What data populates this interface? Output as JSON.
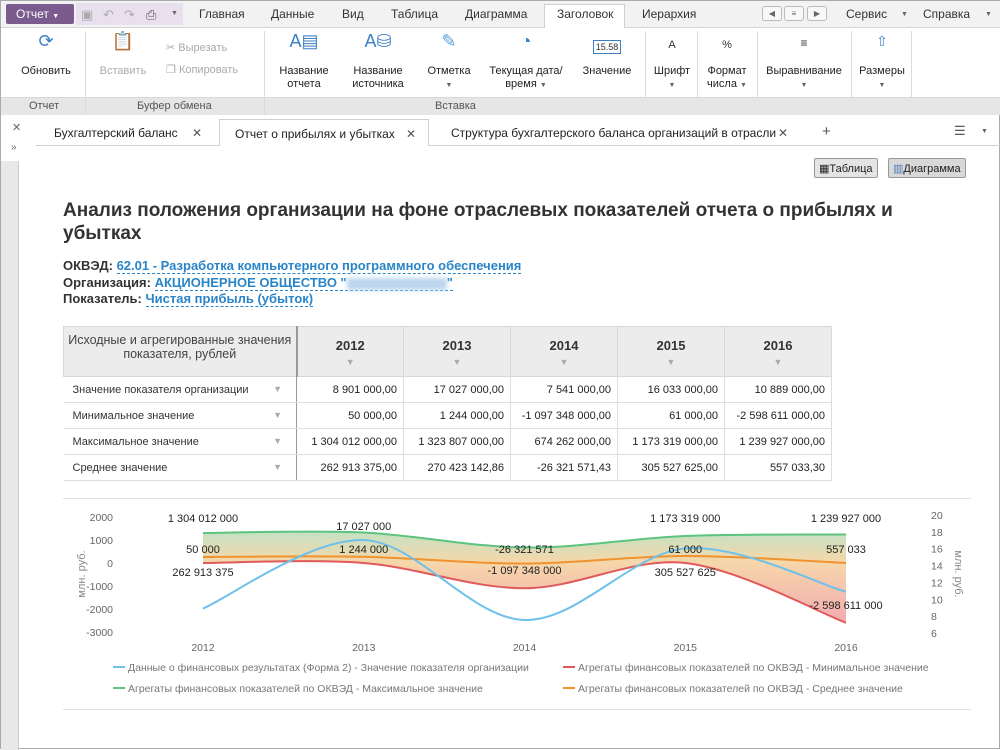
{
  "app": {
    "menu_label": "Отчет"
  },
  "menu_tabs": [
    "Главная",
    "Данные",
    "Вид",
    "Таблица",
    "Диаграмма",
    "Заголовок",
    "Иерархия"
  ],
  "active_menu_tab": "Заголовок",
  "right_menus": [
    "Сервис",
    "Справка"
  ],
  "ribbon": {
    "refresh": "Обновить",
    "paste": "Вставить",
    "cut": "Вырезать",
    "copy": "Копировать",
    "report_name": "Название отчета",
    "source_name": "Название источника",
    "mark": "Отметка",
    "datetime": "Текущая дата/время",
    "value": "Значение",
    "value_icon": "15.58",
    "font": "Шрифт",
    "number_format": "Формат числа",
    "align": "Выравнивание",
    "sizes": "Размеры",
    "groups": [
      "Отчет",
      "Буфер обмена",
      "Вставка"
    ]
  },
  "doc_tabs": [
    "Бухгалтерский баланс",
    "Отчет о прибылях и убытках",
    "Структура бухгалтерского баланса организаций в отрасли"
  ],
  "view_buttons": {
    "table": "Таблица",
    "chart": "Диаграмма"
  },
  "report": {
    "title": "Анализ положения организации на фоне отраслевых показателей отчета о прибылях и убытках",
    "okved_label": "ОКВЭД:",
    "okved_value": "62.01 - Разработка компьютерного программного обеспечения",
    "org_label": "Организация:",
    "org_value": "АКЦИОНЕРНОЕ ОБЩЕСТВО \"",
    "indicator_label": "Показатель:",
    "indicator_value": "Чистая прибыль (убыток)"
  },
  "table": {
    "header": "Исходные и агрегированные значения показателя, рублей",
    "years": [
      "2012",
      "2013",
      "2014",
      "2015",
      "2016"
    ],
    "rows": [
      {
        "label": "Значение показателя организации",
        "values": [
          "8 901 000,00",
          "17 027 000,00",
          "7 541 000,00",
          "16 033 000,00",
          "10 889 000,00"
        ]
      },
      {
        "label": "Минимальное значение",
        "values": [
          "50 000,00",
          "1 244 000,00",
          "-1 097 348 000,00",
          "61 000,00",
          "-2 598 611 000,00"
        ]
      },
      {
        "label": "Максимальное значение",
        "values": [
          "1 304 012 000,00",
          "1 323 807 000,00",
          "674 262 000,00",
          "1 173 319 000,00",
          "1 239 927 000,00"
        ]
      },
      {
        "label": "Среднее значение",
        "values": [
          "262 913 375,00",
          "270 423 142,86",
          "-26 321 571,43",
          "305 527 625,00",
          "557 033,30"
        ]
      }
    ]
  },
  "chart_data": {
    "type": "line",
    "x": [
      "2012",
      "2013",
      "2014",
      "2015",
      "2016"
    ],
    "left_axis": {
      "label": "млн. руб.",
      "range": [
        -3000,
        2000
      ],
      "ticks": [
        "2000",
        "1000",
        "0",
        "-1000",
        "-2000",
        "-3000"
      ]
    },
    "right_axis": {
      "label": "млн. руб.",
      "range": [
        6,
        20
      ],
      "ticks": [
        "20",
        "18",
        "16",
        "14",
        "12",
        "10",
        "8",
        "6"
      ]
    },
    "series": [
      {
        "name": "Данные о финансовых результатах (Форма 2) - Значение показателя организации",
        "axis": "right",
        "color": "#6ec1ea",
        "values": [
          8.901,
          17.027,
          7.541,
          16.033,
          10.889
        ]
      },
      {
        "name": "Агрегаты финансовых показателей по ОКВЭД - Минимальное значение",
        "axis": "left",
        "color": "#e05a5a",
        "values": [
          0.05,
          1.244,
          -1097.348,
          0.061,
          -2598.611
        ]
      },
      {
        "name": "Агрегаты финансовых показателей по ОКВЭД - Максимальное значение",
        "axis": "left",
        "color": "#5cc47e",
        "values": [
          1304.012,
          1323.807,
          674.262,
          1173.319,
          1239.927
        ]
      },
      {
        "name": "Агрегаты финансовых показателей по ОКВЭД - Среднее значение",
        "axis": "left",
        "color": "#f0922e",
        "values": [
          262.913,
          270.423,
          -26.322,
          305.528,
          0.557
        ]
      }
    ],
    "data_labels": [
      {
        "series": 2,
        "x": 0,
        "text": "1 304 012 000"
      },
      {
        "series": 0,
        "x": 1,
        "text": "17 027 000"
      },
      {
        "series": 2,
        "x": 3,
        "text": "1 173 319 000"
      },
      {
        "series": 2,
        "x": 4,
        "text": "1 239 927 000"
      },
      {
        "series": 1,
        "x": 0,
        "text": "50 000"
      },
      {
        "series": 1,
        "x": 1,
        "text": "1 244 000"
      },
      {
        "series": 3,
        "x": 2,
        "text": "-26 321 571"
      },
      {
        "series": 1,
        "x": 3,
        "text": "61 000"
      },
      {
        "series": 3,
        "x": 4,
        "text": "557 033"
      },
      {
        "series": 3,
        "x": 0,
        "text": "262 913 375"
      },
      {
        "series": 1,
        "x": 2,
        "text": "-1 097 348 000"
      },
      {
        "series": 3,
        "x": 3,
        "text": "305 527 625"
      },
      {
        "series": 1,
        "x": 4,
        "text": "-2 598 611 000"
      }
    ],
    "legend_position": "bottom",
    "grid": false
  }
}
